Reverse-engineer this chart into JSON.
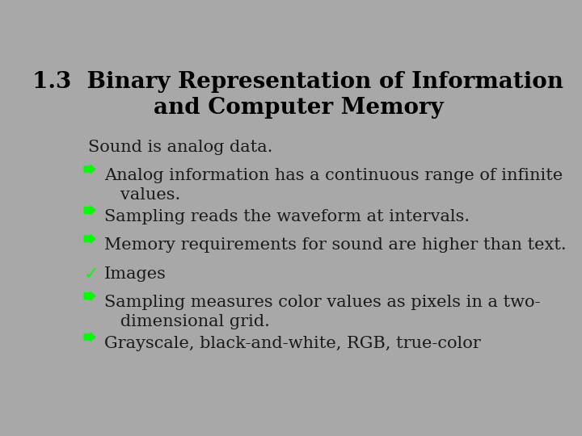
{
  "background_color": "#a8a8a8",
  "title_line1": "1.3  Binary Representation of Information",
  "title_line2": "and Computer Memory",
  "title_fontsize": 20,
  "title_color": "#000000",
  "body_fontsize": 15,
  "body_color": "#1a1a1a",
  "arrow_color": "#00ff00",
  "check_color": "#00ff00",
  "items": [
    {
      "type": "plain",
      "line1": "Sound is analog data.",
      "line2": null
    },
    {
      "type": "arrow",
      "line1": "Analog information has a continuous range of infinite",
      "line2": "   values."
    },
    {
      "type": "arrow",
      "line1": "Sampling reads the waveform at intervals.",
      "line2": null
    },
    {
      "type": "arrow",
      "line1": "Memory requirements for sound are higher than text.",
      "line2": null
    },
    {
      "type": "check",
      "line1": "Images",
      "line2": null
    },
    {
      "type": "arrow",
      "line1": "Sampling measures color values as pixels in a two-",
      "line2": "   dimensional grid."
    },
    {
      "type": "arrow",
      "line1": "Grayscale, black-and-white, RGB, true-color",
      "line2": null
    }
  ]
}
